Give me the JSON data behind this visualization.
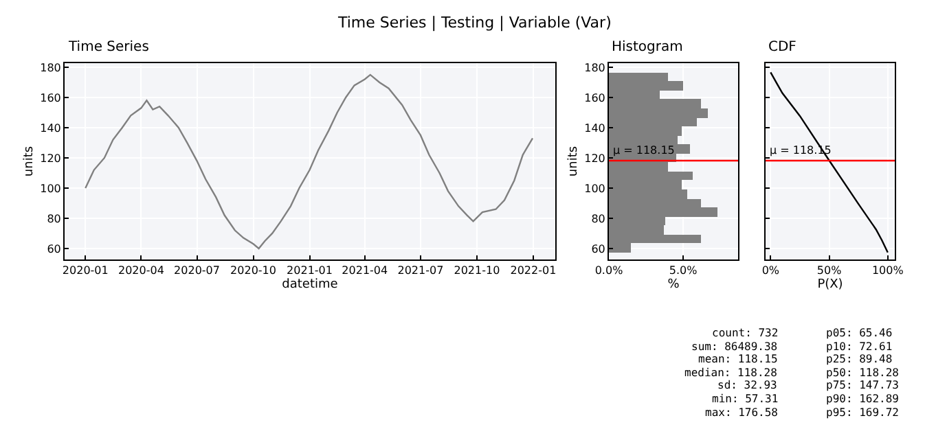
{
  "chart_data": [
    {
      "type": "line",
      "title": "Time Series",
      "xlabel": "datetime",
      "ylabel": "units",
      "x": [
        "2020-01-01",
        "2020-01-15",
        "2020-02-01",
        "2020-02-15",
        "2020-03-01",
        "2020-03-15",
        "2020-04-01",
        "2020-04-10",
        "2020-04-20",
        "2020-05-01",
        "2020-05-15",
        "2020-06-01",
        "2020-06-15",
        "2020-07-01",
        "2020-07-15",
        "2020-08-01",
        "2020-08-15",
        "2020-09-01",
        "2020-09-15",
        "2020-10-01",
        "2020-10-10",
        "2020-10-20",
        "2020-11-01",
        "2020-11-15",
        "2020-12-01",
        "2020-12-15",
        "2021-01-01",
        "2021-01-15",
        "2021-02-01",
        "2021-02-15",
        "2021-03-01",
        "2021-03-15",
        "2021-04-01",
        "2021-04-10",
        "2021-04-25",
        "2021-05-10",
        "2021-06-01",
        "2021-06-15",
        "2021-07-01",
        "2021-07-15",
        "2021-08-01",
        "2021-08-15",
        "2021-09-01",
        "2021-09-15",
        "2021-09-25",
        "2021-10-10",
        "2021-11-01",
        "2021-11-15",
        "2021-12-01",
        "2021-12-15",
        "2021-12-31"
      ],
      "series": [
        {
          "color": "#808080",
          "values": [
            100,
            112,
            120,
            132,
            140,
            148,
            153,
            158,
            152,
            154,
            148,
            140,
            130,
            118,
            106,
            94,
            82,
            72,
            67,
            63,
            60,
            65,
            70,
            78,
            88,
            100,
            112,
            125,
            138,
            150,
            160,
            168,
            172,
            175,
            170,
            166,
            155,
            145,
            135,
            122,
            110,
            98,
            88,
            82,
            78,
            84,
            86,
            92,
            105,
            122,
            133
          ]
        }
      ],
      "xlim": [
        "2019-11-28",
        "2022-02-06"
      ],
      "xticks": [
        "2020-01",
        "2020-04",
        "2020-07",
        "2020-10",
        "2021-01",
        "2021-04",
        "2021-07",
        "2021-10",
        "2022-01"
      ],
      "ylim": [
        52.7,
        182.7
      ],
      "yticks": [
        60,
        80,
        100,
        120,
        140,
        160,
        180
      ],
      "grid": true
    },
    {
      "type": "histogram",
      "title": "Histogram",
      "orientation": "horizontal",
      "xlabel": "%",
      "ylabel": "units",
      "color": "#808080",
      "bins": [
        57.31,
        63.27,
        69.24,
        75.2,
        81.16,
        87.13,
        93.09,
        99.05,
        105.02,
        110.98,
        116.95,
        122.91,
        128.87,
        134.84,
        140.8,
        146.76,
        152.73,
        158.69,
        164.65,
        170.62,
        176.58
      ],
      "values": [
        1.5,
        6.2,
        3.7,
        3.8,
        7.3,
        6.2,
        5.3,
        4.9,
        5.6,
        4.0,
        4.5,
        5.5,
        4.6,
        4.9,
        5.9,
        6.7,
        6.2,
        3.4,
        5.0,
        4.0
      ],
      "xlim": [
        0,
        8.7
      ],
      "xticks": [
        {
          "value": 0,
          "label": "0.0%"
        },
        {
          "value": 5,
          "label": "5.0%"
        }
      ],
      "ylim": [
        52.7,
        182.7
      ],
      "yticks": [
        60,
        80,
        100,
        120,
        140,
        160,
        180
      ],
      "grid": true,
      "ref_lines": [
        {
          "axis": "y",
          "value": 118.15,
          "label": "μ = 118.15",
          "color": "#ff0000"
        }
      ]
    },
    {
      "type": "line",
      "title": "CDF",
      "xlabel": "P(X)",
      "x": [
        0,
        5,
        10,
        25,
        50,
        75,
        90,
        95,
        100
      ],
      "series": [
        {
          "color": "#000000",
          "values": [
            176.58,
            169.72,
            162.89,
            147.73,
            118.28,
            89.48,
            72.61,
            65.46,
            57.31
          ]
        }
      ],
      "xlim": [
        -4.3,
        106
      ],
      "xticks": [
        {
          "value": 0,
          "label": "0%"
        },
        {
          "value": 50,
          "label": "50%"
        },
        {
          "value": 100,
          "label": "100%"
        }
      ],
      "ylim": [
        52.7,
        182.7
      ],
      "yticks": [
        60,
        80,
        100,
        120,
        140,
        160,
        180
      ],
      "tick_labels": "x",
      "grid": true,
      "ref_lines": [
        {
          "axis": "y",
          "value": 118.15,
          "label": "μ = 118.15",
          "color": "#ff0000"
        }
      ]
    },
    {
      "type": "other",
      "title": "Time Series | Testing | Variable (Var)",
      "annotations": [
        "count: 732",
        "sum: 86489.38",
        "mean: 118.15",
        "median: 118.28",
        "sd: 32.93",
        "min: 57.31",
        "max: 176.58",
        "p05: 65.46",
        "p10: 72.61",
        "p25: 89.48",
        "p50: 118.28",
        "p75: 147.73",
        "p90: 162.89",
        "p95: 169.72"
      ]
    }
  ]
}
